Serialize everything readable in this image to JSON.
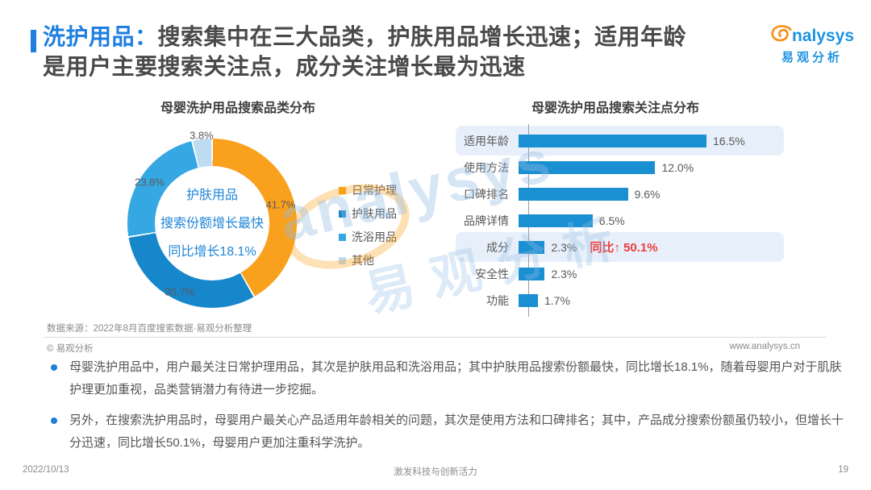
{
  "header": {
    "title_highlight": "洗护用品：",
    "title_line1": "搜索集中在三大品类，护肤用品增长迅速；适用年龄",
    "title_line2": "是用户主要搜索关注点，成分关注增长最为迅速",
    "logo_en": "nalysys",
    "logo_cn": "易观分析"
  },
  "chart_data": [
    {
      "type": "pie",
      "subtype": "donut",
      "title": "母婴洗护用品搜索品类分布",
      "labels": [
        "日常护理",
        "护肤用品",
        "洗浴用品",
        "其他"
      ],
      "values": [
        41.7,
        30.7,
        23.8,
        3.8
      ],
      "data_labels": [
        "41.7%",
        "30.7%",
        "23.8%",
        "3.8%"
      ],
      "colors": [
        "#F9A11C",
        "#1787CC",
        "#35A7E3",
        "#BDDCF2"
      ],
      "center_text": [
        "护肤用品",
        "搜索份额增长最快",
        "同比增长18.1%"
      ],
      "start_angle_deg": 0,
      "direction": "clockwise",
      "legend_position": "right"
    },
    {
      "type": "bar",
      "orientation": "horizontal",
      "title": "母婴洗护用品搜索关注点分布",
      "categories": [
        "适用年龄",
        "使用方法",
        "口碑排名",
        "品牌详情",
        "成分",
        "安全性",
        "功能"
      ],
      "values": [
        16.5,
        12.0,
        9.6,
        6.5,
        2.3,
        2.3,
        1.7
      ],
      "value_labels": [
        "16.5%",
        "12.0%",
        "9.6%",
        "6.5%",
        "2.3%",
        "2.3%",
        "1.7%"
      ],
      "bar_color": "#1A8FD1",
      "highlight_band_color": "#E7F0FA",
      "highlighted_rows": [
        0,
        4
      ],
      "xlim": [
        0,
        16.5
      ],
      "annotation": {
        "row_index": 4,
        "label": "同比",
        "arrow": "↑",
        "value": "50.1%",
        "color": "#ED3C3C"
      },
      "grid": false
    }
  ],
  "source_note": "数据来源：2022年8月百度搜索数据·易观分析整理",
  "copyright": "© 易观分析",
  "website": "www.analysys.cn",
  "bullets": [
    "母婴洗护用品中，用户最关注日常护理用品，其次是护肤用品和洗浴用品；其中护肤用品搜索份额最快，同比增长18.1%，随着母婴用户对于肌肤护理更加重视，品类营销潜力有待进一步挖掘。",
    "另外，在搜索洗护用品时，母婴用户最关心产品适用年龄相关的问题，其次是使用方法和口碑排名；其中，产品成分搜索份额虽仍较小，但增长十分迅速，同比增长50.1%，母婴用户更加注重科学洗护。"
  ],
  "footer": {
    "date": "2022/10/13",
    "slogan": "激发科技与创新活力",
    "page": "19"
  },
  "watermark": {
    "en": "analysys",
    "cn": "易观分析"
  },
  "colors": {
    "accent_blue": "#1E7FE0",
    "donut_center_blue": "#1F86D8",
    "annotation_red": "#ED3C3C"
  }
}
